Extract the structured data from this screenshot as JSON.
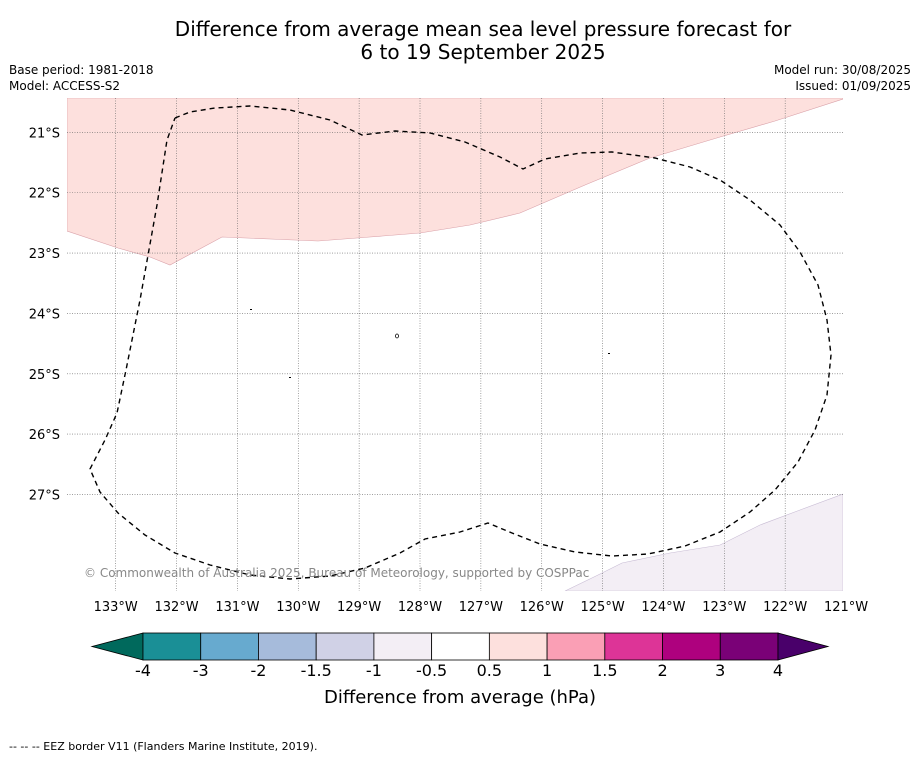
{
  "header": {
    "title_line1": "Difference from average mean sea level pressure forecast for",
    "title_line2": "6 to 19 September 2025",
    "base_period": "Base period: 1981-2018",
    "model": "Model: ACCESS-S2",
    "model_run": "Model run: 30/08/2025",
    "issued": "Issued: 01/09/2025"
  },
  "map": {
    "lat_labels": [
      "21°S",
      "22°S",
      "23°S",
      "24°S",
      "25°S",
      "26°S",
      "27°S"
    ],
    "lat_values": [
      -21,
      -22,
      -23,
      -24,
      -25,
      -26,
      -27
    ],
    "lon_labels": [
      "133°W",
      "132°W",
      "131°W",
      "130°W",
      "129°W",
      "128°W",
      "127°W",
      "126°W",
      "125°W",
      "124°W",
      "123°W",
      "122°W",
      "121°W"
    ],
    "lon_values": [
      -133,
      -132,
      -131,
      -130,
      -129,
      -128,
      -127,
      -126,
      -125,
      -124,
      -123,
      -122,
      -121
    ],
    "lat_range": [
      -28.6,
      -20.43
    ],
    "lon_range": [
      -133.8,
      -121.05
    ],
    "copyright": "© Commonwealth of Australia 2025, Bureau of Meteorology, supported by COSPPac",
    "colors": {
      "positive_0_5_to_1": "#fde0dd",
      "negative_neg1_to_neg0_5": "#f3eef5",
      "grid": "#666666",
      "eez_border": "#000000"
    }
  },
  "colorbar": {
    "tick_labels": [
      "-4",
      "-3",
      "-2",
      "-1.5",
      "-1",
      "-0.5",
      "0.5",
      "1",
      "1.5",
      "2",
      "3",
      "4"
    ],
    "colors": [
      "#1a8f96",
      "#67aacf",
      "#a6bbdb",
      "#d0d1e6",
      "#f3eef5",
      "#ffffff",
      "#fde0dd",
      "#fa9fb5",
      "#dd3497",
      "#ae017e",
      "#7a0177"
    ],
    "under_color": "#00695c",
    "over_color": "#49006a",
    "label": "Difference from average (hPa)"
  },
  "footer": {
    "eez_note": "--  --  -- EEZ border V11 (Flanders Marine Institute, 2019)."
  }
}
